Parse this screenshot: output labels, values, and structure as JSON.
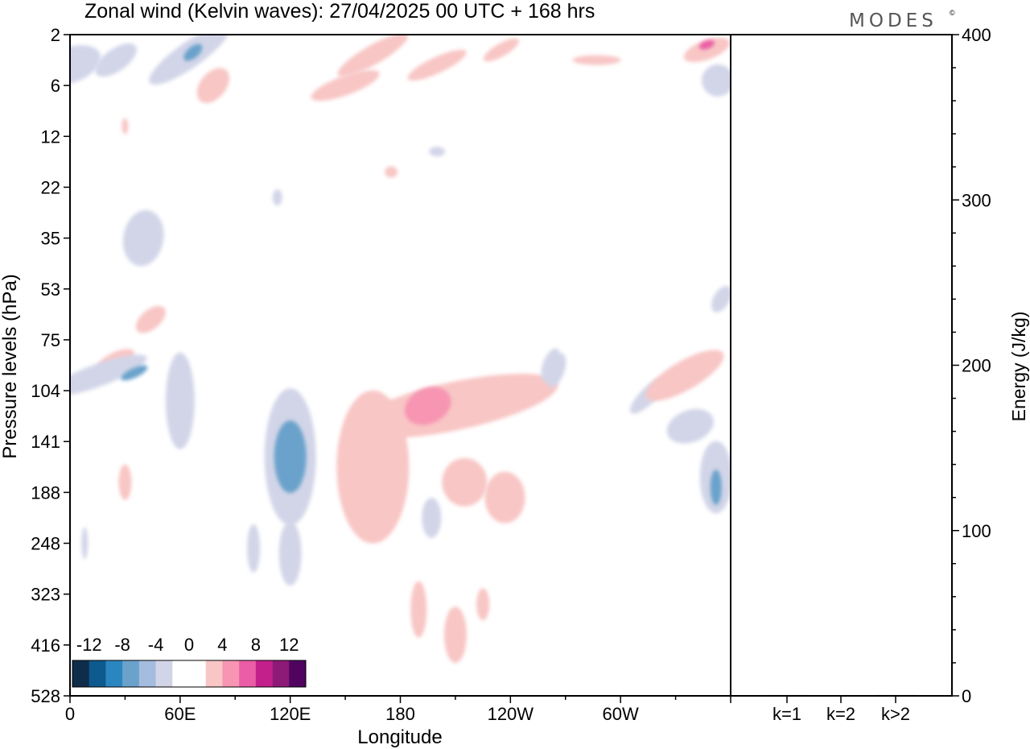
{
  "title": "Zonal wind (Kelvin waves):  27/04/2025  00 UTC  + 168 hrs",
  "logo": "MODES",
  "logo_mark": "©",
  "chart_data": [
    {
      "type": "heatmap",
      "title": "Zonal wind (Kelvin waves):  27/04/2025  00 UTC  + 168 hrs",
      "xlabel": "Longitude",
      "ylabel": "Pressure levels (hPa)",
      "x_ticks": [
        "0",
        "60E",
        "120E",
        "180",
        "120W",
        "60W"
      ],
      "x_tick_degrees": [
        0,
        60,
        120,
        180,
        240,
        300
      ],
      "xlim": [
        0,
        360
      ],
      "y_ticks": [
        "2",
        "6",
        "12",
        "22",
        "35",
        "53",
        "75",
        "104",
        "141",
        "188",
        "248",
        "323",
        "416",
        "528"
      ],
      "colorbar": {
        "labels": [
          "-12",
          "-8",
          "-4",
          "0",
          "4",
          "8",
          "12"
        ],
        "colors": [
          "#0f2d4a",
          "#0d5a8e",
          "#2b86c0",
          "#6aa2cb",
          "#a5bcde",
          "#d2d5e8",
          "#ffffff",
          "#ffffff",
          "#f8c6c5",
          "#f795b2",
          "#eb5da6",
          "#c4208c",
          "#8e1a78",
          "#50045f"
        ]
      },
      "anomalies": [
        {
          "lon": 0,
          "lat_idx": 0.6,
          "wind": -3
        },
        {
          "lon": 25,
          "lat_idx": 0.5,
          "wind": -3
        },
        {
          "lon": 67,
          "lat_idx": 0.3,
          "wind": -6
        },
        {
          "lon": 80,
          "lat_idx": 1.0,
          "wind": 3
        },
        {
          "lon": 150,
          "lat_idx": 1.0,
          "wind": 3
        },
        {
          "lon": 165,
          "lat_idx": 0.4,
          "wind": 3
        },
        {
          "lon": 200,
          "lat_idx": 0.8,
          "wind": 3
        },
        {
          "lon": 347,
          "lat_idx": 0.2,
          "wind": 8
        },
        {
          "lon": 353,
          "lat_idx": 0.9,
          "wind": -4
        },
        {
          "lon": 42,
          "lat_idx": 4.0,
          "wind": -3
        },
        {
          "lon": 38,
          "lat_idx": 5.8,
          "wind": 3
        },
        {
          "lon": 15,
          "lat_idx": 6.5,
          "wind": -4
        },
        {
          "lon": 120,
          "lat_idx": 8.3,
          "wind": -6
        },
        {
          "lon": 160,
          "lat_idx": 8.6,
          "wind": 3
        },
        {
          "lon": 195,
          "lat_idx": 7.3,
          "wind": 6
        },
        {
          "lon": 230,
          "lat_idx": 8.2,
          "wind": 3
        },
        {
          "lon": 322,
          "lat_idx": 6.4,
          "wind": 3
        },
        {
          "lon": 353,
          "lat_idx": 8.8,
          "wind": -6
        },
        {
          "lon": 100,
          "lat_idx": 9.5,
          "wind": -3
        },
        {
          "lon": 190,
          "lat_idx": 11.4,
          "wind": 3
        },
        {
          "lon": 215,
          "lat_idx": 12.1,
          "wind": 3
        }
      ]
    },
    {
      "type": "bar",
      "ylabel": "Energy (J/kg)",
      "categories": [
        "k=1",
        "k=2",
        "k>2"
      ],
      "values": [
        0.5,
        0.3,
        0.5
      ],
      "ylim": [
        0,
        400
      ],
      "y_ticks": [
        "0",
        "100",
        "200",
        "300",
        "400"
      ]
    }
  ]
}
